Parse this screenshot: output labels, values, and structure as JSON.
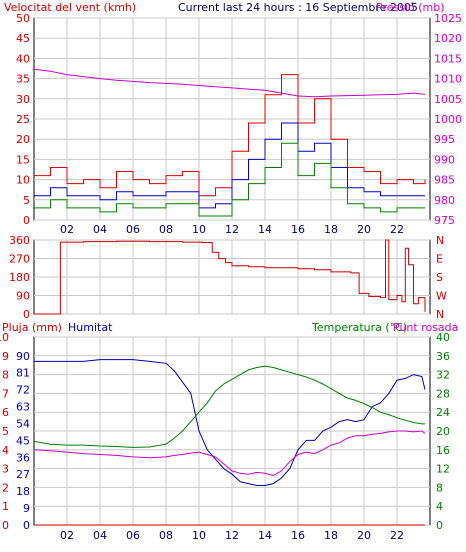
{
  "colors": {
    "wind_avg": "#0000cc",
    "wind_gust": "#dd0000",
    "wind_min": "#008000",
    "pressure": "#cc00cc",
    "direction": "#cc0000",
    "humidity": "#0000aa",
    "temperature": "#008000",
    "dewpoint": "#cc00cc",
    "rain": "#cc0000",
    "grid": "#c8c8c8",
    "frame": "#000000"
  },
  "chart_data": [
    {
      "type": "line",
      "subtitle": "Current last 24 hours : 16 Septiembre 2005",
      "ylabel_left": "Velocitat del vent (kmh)",
      "ylabel_right": "Pressió (mb)",
      "ylim_left": [
        0,
        50
      ],
      "ylim_right": [
        975,
        1025
      ],
      "yticks_left": [
        0,
        5,
        10,
        15,
        20,
        25,
        30,
        35,
        40,
        45,
        50
      ],
      "yticks_right": [
        975,
        980,
        985,
        990,
        995,
        1000,
        1005,
        1010,
        1015,
        1020,
        1025
      ],
      "xlim": [
        0,
        24
      ],
      "xticks": [
        2,
        4,
        6,
        8,
        10,
        12,
        14,
        16,
        18,
        20,
        22
      ],
      "xtick_labels": [
        "02",
        "04",
        "06",
        "08",
        "10",
        "12",
        "14",
        "16",
        "18",
        "20",
        "22"
      ],
      "grid": true,
      "series": [
        {
          "key": "pressure",
          "axis": "right",
          "x": [
            0,
            1,
            2,
            3,
            4,
            5,
            6,
            7,
            8,
            9,
            10,
            11,
            12,
            13,
            14,
            15,
            16,
            17,
            18,
            19,
            20,
            21,
            22,
            23,
            23.7
          ],
          "values": [
            1012.3,
            1011.8,
            1011.0,
            1010.5,
            1010.0,
            1009.6,
            1009.3,
            1009.0,
            1008.8,
            1008.6,
            1008.3,
            1008.0,
            1007.7,
            1007.4,
            1007.1,
            1006.4,
            1005.7,
            1005.5,
            1005.7,
            1005.8,
            1005.9,
            1006.0,
            1006.1,
            1006.4,
            1006.1
          ]
        },
        {
          "key": "wind_gust",
          "axis": "left",
          "x": [
            0,
            1,
            2,
            3,
            4,
            5,
            6,
            7,
            8,
            9,
            10,
            11,
            12,
            13,
            14,
            15,
            16,
            17,
            18,
            19,
            20,
            21,
            22,
            23,
            23.7
          ],
          "values": [
            11,
            13,
            9,
            10,
            8,
            12,
            10,
            9,
            11,
            12,
            6,
            8,
            17,
            24,
            31,
            36,
            24,
            30,
            20,
            13,
            12,
            9,
            10,
            9,
            10
          ]
        },
        {
          "key": "wind_avg",
          "axis": "left",
          "x": [
            0,
            1,
            2,
            3,
            4,
            5,
            6,
            7,
            8,
            9,
            10,
            11,
            12,
            13,
            14,
            15,
            16,
            17,
            18,
            19,
            20,
            21,
            22,
            23,
            23.7
          ],
          "values": [
            6,
            8,
            6,
            6,
            5,
            7,
            6,
            6,
            7,
            7,
            3,
            4,
            10,
            15,
            20,
            24,
            17,
            19,
            13,
            8,
            7,
            6,
            6,
            6,
            6
          ]
        },
        {
          "key": "wind_min",
          "axis": "left",
          "x": [
            0,
            1,
            2,
            3,
            4,
            5,
            6,
            7,
            8,
            9,
            10,
            11,
            12,
            13,
            14,
            15,
            16,
            17,
            18,
            19,
            20,
            21,
            22,
            23,
            23.7
          ],
          "values": [
            3,
            5,
            3,
            3,
            2,
            4,
            3,
            3,
            4,
            4,
            1,
            1,
            5,
            9,
            13,
            19,
            11,
            14,
            8,
            4,
            3,
            2,
            3,
            3,
            3
          ]
        }
      ]
    },
    {
      "type": "line",
      "ylim": [
        0,
        360
      ],
      "yticks_left": [
        0,
        90,
        180,
        270,
        360
      ],
      "yticks_right_labels": [
        "N",
        "W",
        "S",
        "E",
        "N"
      ],
      "xlim": [
        0,
        24
      ],
      "xticks": [
        2,
        4,
        6,
        8,
        10,
        12,
        14,
        16,
        18,
        20,
        22
      ],
      "grid": true,
      "series": [
        {
          "key": "direction",
          "x": [
            0,
            1.45,
            1.6,
            3,
            5,
            7,
            9,
            10.2,
            10.8,
            11.2,
            11.6,
            12,
            13,
            14,
            15,
            16,
            17,
            18,
            19.2,
            19.7,
            20.3,
            21,
            21.3,
            21.5,
            22,
            22.3,
            22.5,
            22.7,
            23,
            23.3,
            23.7
          ],
          "values": [
            0,
            0,
            350,
            352,
            354,
            352,
            350,
            348,
            300,
            270,
            250,
            235,
            230,
            225,
            225,
            220,
            215,
            205,
            200,
            100,
            85,
            80,
            360,
            70,
            90,
            60,
            320,
            240,
            50,
            80,
            10
          ]
        }
      ]
    },
    {
      "type": "line",
      "legend": [
        "Pluja (mm)",
        "Humitat",
        "Temperatura (°C)",
        "Punt rosada"
      ],
      "ylim_rain": [
        0,
        10
      ],
      "ylim_humidity": [
        0,
        100
      ],
      "ylim_temp": [
        0,
        40
      ],
      "yticks_rain": [
        0,
        1,
        2,
        3,
        4,
        5,
        6,
        7,
        8,
        9,
        10
      ],
      "yticks_humidity": [
        0,
        9,
        18,
        27,
        36,
        45,
        54,
        63,
        72,
        81,
        90
      ],
      "yticks_humidity_labels": [
        "0",
        "9",
        "18",
        "27",
        "36",
        "45",
        "54",
        "63",
        "72",
        "81",
        "90"
      ],
      "yticks_temp": [
        0,
        4,
        8,
        12,
        16,
        20,
        24,
        28,
        32,
        36,
        40
      ],
      "xlim": [
        0,
        24
      ],
      "xticks": [
        2,
        4,
        6,
        8,
        10,
        12,
        14,
        16,
        18,
        20,
        22
      ],
      "xtick_labels": [
        "02",
        "04",
        "06",
        "08",
        "10",
        "12",
        "14",
        "16",
        "18",
        "20",
        "22"
      ],
      "grid": true,
      "series": [
        {
          "key": "humidity",
          "axis": "humidity",
          "x": [
            0,
            1,
            2,
            3,
            4,
            5,
            6,
            7,
            8,
            8.5,
            9,
            9.5,
            10,
            10.5,
            11,
            11.5,
            12,
            12.5,
            13,
            13.5,
            14,
            14.5,
            15,
            15.5,
            16,
            16.5,
            17,
            17.5,
            18,
            18.5,
            19,
            19.5,
            20,
            20.5,
            21,
            21.5,
            22,
            22.5,
            23,
            23.5,
            23.7
          ],
          "values": [
            87,
            87,
            87,
            87,
            88,
            88,
            88,
            87,
            86,
            82,
            76,
            70,
            50,
            40,
            35,
            30,
            27,
            23,
            22,
            21,
            21,
            22,
            25,
            30,
            40,
            45,
            45,
            50,
            52,
            55,
            56,
            55,
            56,
            63,
            65,
            70,
            77,
            78,
            80,
            79,
            72
          ]
        },
        {
          "key": "temperature",
          "axis": "temp",
          "x": [
            0,
            1,
            2,
            3,
            4,
            5,
            6,
            7,
            8,
            8.5,
            9,
            9.5,
            10,
            10.5,
            11,
            11.5,
            12,
            12.5,
            13,
            13.5,
            14,
            14.5,
            15,
            15.5,
            16,
            16.5,
            17,
            17.5,
            18,
            18.5,
            19,
            19.5,
            20,
            20.5,
            21,
            21.5,
            22,
            22.5,
            23,
            23.5,
            23.7
          ],
          "values": [
            17.8,
            17.2,
            17,
            17,
            16.8,
            16.7,
            16.5,
            16.6,
            17.2,
            18.5,
            20,
            22,
            24,
            26,
            28.5,
            30,
            31,
            32,
            33,
            33.5,
            33.8,
            33.5,
            33,
            32.5,
            32,
            31.5,
            30.8,
            30,
            29,
            28,
            27,
            26.5,
            25.8,
            25,
            24,
            23.5,
            22.8,
            22.3,
            21.8,
            21.5,
            21.5
          ]
        },
        {
          "key": "dewpoint",
          "axis": "temp",
          "x": [
            0,
            1,
            2,
            3,
            4,
            5,
            6,
            7,
            8,
            8.5,
            9,
            9.5,
            10,
            10.5,
            11,
            11.5,
            12,
            12.5,
            13,
            13.5,
            14,
            14.5,
            15,
            15.5,
            16,
            16.5,
            17,
            17.5,
            18,
            18.5,
            19,
            19.5,
            20,
            20.5,
            21,
            21.5,
            22,
            22.5,
            23,
            23.5,
            23.7
          ],
          "values": [
            16,
            15.8,
            15.5,
            15.2,
            15,
            14.8,
            14.5,
            14.3,
            14.5,
            14.8,
            15,
            15.3,
            15.5,
            15,
            14.5,
            13,
            11.5,
            11.0,
            10.8,
            11.2,
            11.0,
            10.5,
            11.5,
            13.5,
            15,
            15.5,
            15.2,
            16.0,
            17.0,
            17.5,
            18.5,
            19.0,
            19.0,
            19.3,
            19.5,
            19.8,
            20.0,
            20.0,
            19.8,
            20.0,
            19.5
          ]
        },
        {
          "key": "rain",
          "axis": "rain",
          "x": [
            0,
            23.7
          ],
          "values": [
            0,
            0
          ]
        }
      ]
    }
  ]
}
